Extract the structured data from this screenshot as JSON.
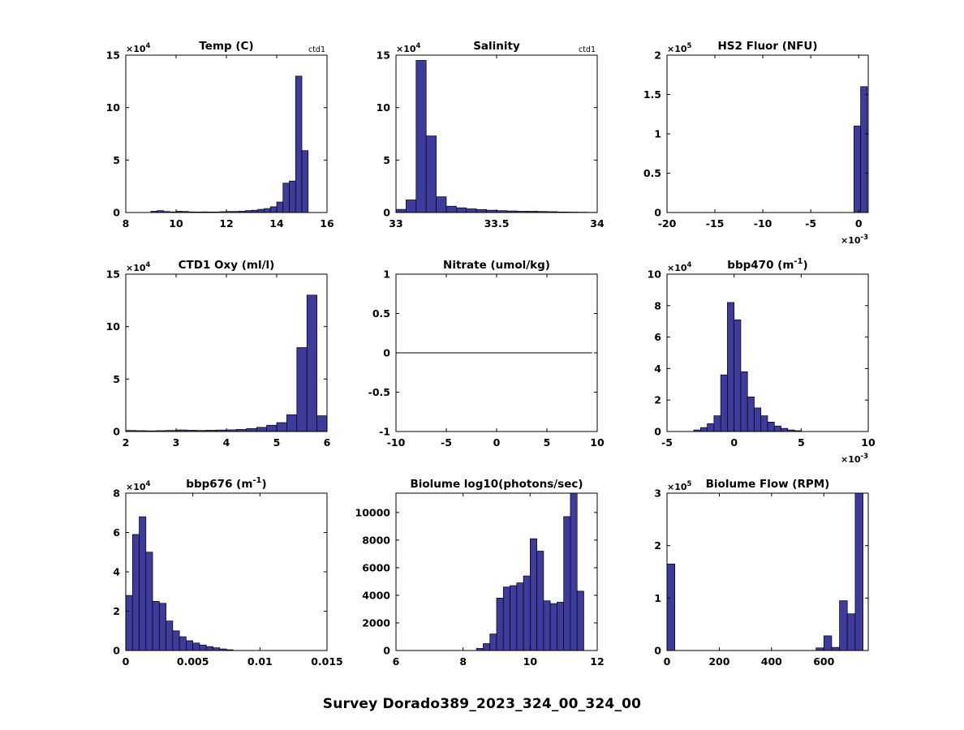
{
  "figure": {
    "title": "Survey Dorado389_2023_324_00_324_00",
    "background": "#ffffff",
    "bar_fill": "#3d3c9c",
    "bar_edge": "#000000",
    "axes_color": "#000000"
  },
  "chart_data": [
    {
      "type": "bar",
      "title": [
        {
          "t": "Temp (C)"
        }
      ],
      "annotation": "ctd1",
      "xlabel": "",
      "ylabel": "",
      "xlim": [
        8,
        16
      ],
      "ylim": [
        0,
        15
      ],
      "xticks": [
        8,
        10,
        12,
        14,
        16
      ],
      "xtick_labels": [
        "8",
        "10",
        "12",
        "14",
        "16"
      ],
      "yticks": [
        0,
        5,
        10,
        15
      ],
      "ytick_labels": [
        "0",
        "5",
        "10",
        "15"
      ],
      "y_exp": "4",
      "bin_width": 0.25,
      "bin_x": [
        9.0,
        9.25,
        9.5,
        9.75,
        10.0,
        10.25,
        10.5,
        10.75,
        11.0,
        11.25,
        11.5,
        11.75,
        12.0,
        12.25,
        12.5,
        12.75,
        13.0,
        13.25,
        13.5,
        13.75,
        14.0,
        14.25,
        14.5,
        14.75,
        15.0
      ],
      "values": [
        0.12,
        0.18,
        0.1,
        0.06,
        0.12,
        0.1,
        0.06,
        0.05,
        0.06,
        0.05,
        0.05,
        0.08,
        0.1,
        0.1,
        0.12,
        0.18,
        0.22,
        0.3,
        0.38,
        0.55,
        1.0,
        2.8,
        3.0,
        13.0,
        5.9
      ]
    },
    {
      "type": "bar",
      "title": [
        {
          "t": "Salinity"
        }
      ],
      "annotation": "ctd1",
      "xlim": [
        33,
        34
      ],
      "ylim": [
        0,
        15
      ],
      "xticks": [
        33,
        33.5,
        34
      ],
      "xtick_labels": [
        "33",
        "33.5",
        "34"
      ],
      "yticks": [
        0,
        5,
        10,
        15
      ],
      "ytick_labels": [
        "0",
        "5",
        "10",
        "15"
      ],
      "y_exp": "4",
      "bin_width": 0.05,
      "bin_x": [
        33.0,
        33.05,
        33.1,
        33.15,
        33.2,
        33.25,
        33.3,
        33.35,
        33.4,
        33.45,
        33.5,
        33.55,
        33.6,
        33.65,
        33.7,
        33.75,
        33.8,
        33.85,
        33.9,
        33.95
      ],
      "values": [
        0.3,
        1.2,
        14.5,
        7.3,
        1.5,
        0.6,
        0.45,
        0.35,
        0.28,
        0.22,
        0.18,
        0.15,
        0.12,
        0.12,
        0.1,
        0.08,
        0.05,
        0.04,
        0.03,
        0.02
      ]
    },
    {
      "type": "bar",
      "title": [
        {
          "t": "HS2 Fluor (NFU)"
        }
      ],
      "xlim": [
        -20,
        1.0
      ],
      "ylim": [
        0,
        2
      ],
      "xticks": [
        -20,
        -15,
        -10,
        -5,
        0
      ],
      "xtick_labels": [
        "-20",
        "-15",
        "-10",
        "-5",
        "0"
      ],
      "yticks": [
        0,
        0.5,
        1,
        1.5,
        2
      ],
      "ytick_labels": [
        "0",
        "0.5",
        "1",
        "1.5",
        "2"
      ],
      "y_exp": "5",
      "x_exp": "-3",
      "bin_width": 0.7,
      "bin_x": [
        -0.5,
        0.2
      ],
      "values": [
        1.1,
        1.6
      ]
    },
    {
      "type": "bar",
      "title": [
        {
          "t": "CTD1 Oxy (ml/l)"
        }
      ],
      "xlim": [
        2,
        6
      ],
      "ylim": [
        0,
        15
      ],
      "xticks": [
        2,
        3,
        4,
        5,
        6
      ],
      "xtick_labels": [
        "2",
        "3",
        "4",
        "5",
        "6"
      ],
      "yticks": [
        0,
        5,
        10,
        15
      ],
      "ytick_labels": [
        "0",
        "5",
        "10",
        "15"
      ],
      "y_exp": "4",
      "bin_width": 0.2,
      "bin_x": [
        2.0,
        2.2,
        2.4,
        2.6,
        2.8,
        3.0,
        3.2,
        3.4,
        3.6,
        3.8,
        4.0,
        4.2,
        4.4,
        4.6,
        4.8,
        5.0,
        5.2,
        5.4,
        5.6,
        5.8
      ],
      "values": [
        0.1,
        0.08,
        0.06,
        0.08,
        0.1,
        0.15,
        0.12,
        0.1,
        0.12,
        0.14,
        0.16,
        0.2,
        0.28,
        0.4,
        0.6,
        0.85,
        1.6,
        8.0,
        13.0,
        1.5
      ]
    },
    {
      "type": "line",
      "title": [
        {
          "t": "Nitrate (umol/kg)"
        }
      ],
      "xlim": [
        -10,
        10
      ],
      "ylim": [
        -1,
        1
      ],
      "xticks": [
        -10,
        -5,
        0,
        5,
        10
      ],
      "xtick_labels": [
        "-10",
        "-5",
        "0",
        "5",
        "10"
      ],
      "yticks": [
        -1,
        -0.5,
        0,
        0.5,
        1
      ],
      "ytick_labels": [
        "-1",
        "-0.5",
        "0",
        "0.5",
        "1"
      ],
      "line": {
        "x": [
          -10,
          9.5
        ],
        "y": [
          0,
          0
        ]
      }
    },
    {
      "type": "bar",
      "title": [
        {
          "t": "bbp470 (m"
        },
        {
          "t": "-1",
          "sup": true
        },
        {
          "t": ")"
        }
      ],
      "xlim": [
        -5,
        10
      ],
      "ylim": [
        0,
        10
      ],
      "xticks": [
        -5,
        0,
        5,
        10
      ],
      "xtick_labels": [
        "-5",
        "0",
        "5",
        "10"
      ],
      "yticks": [
        0,
        2,
        4,
        6,
        8,
        10
      ],
      "ytick_labels": [
        "0",
        "2",
        "4",
        "6",
        "8",
        "10"
      ],
      "y_exp": "4",
      "x_exp": "-3",
      "bin_width": 0.5,
      "bin_x": [
        -3.0,
        -2.5,
        -2.0,
        -1.5,
        -1.0,
        -0.5,
        0,
        0.5,
        1.0,
        1.5,
        2.0,
        2.5,
        3.0,
        3.5,
        4.0,
        4.5
      ],
      "values": [
        0.1,
        0.25,
        0.5,
        1.0,
        3.6,
        8.2,
        7.1,
        3.8,
        2.2,
        1.5,
        1.0,
        0.6,
        0.35,
        0.2,
        0.1,
        0.05
      ]
    },
    {
      "type": "bar",
      "title": [
        {
          "t": "bbp676 (m"
        },
        {
          "t": "-1",
          "sup": true
        },
        {
          "t": ")"
        }
      ],
      "xlim": [
        0,
        0.015
      ],
      "ylim": [
        0,
        8
      ],
      "xticks": [
        0,
        0.005,
        0.01,
        0.015
      ],
      "xtick_labels": [
        "0",
        "0.005",
        "0.01",
        "0.015"
      ],
      "yticks": [
        0,
        2,
        4,
        6,
        8
      ],
      "ytick_labels": [
        "0",
        "2",
        "4",
        "6",
        "8"
      ],
      "y_exp": "4",
      "bin_width": 0.0005,
      "bin_x": [
        0,
        0.0005,
        0.001,
        0.0015,
        0.002,
        0.0025,
        0.003,
        0.0035,
        0.004,
        0.0045,
        0.005,
        0.0055,
        0.006,
        0.0065,
        0.007,
        0.0075
      ],
      "values": [
        2.8,
        5.9,
        6.8,
        5.0,
        2.5,
        2.4,
        1.5,
        1.0,
        0.7,
        0.5,
        0.38,
        0.28,
        0.2,
        0.14,
        0.08,
        0.04
      ]
    },
    {
      "type": "bar",
      "title": [
        {
          "t": "Biolume log10(photons/sec)"
        }
      ],
      "xlim": [
        6,
        12
      ],
      "ylim": [
        0,
        11400
      ],
      "xticks": [
        6,
        8,
        10,
        12
      ],
      "xtick_labels": [
        "6",
        "8",
        "10",
        "12"
      ],
      "yticks": [
        0,
        2000,
        4000,
        6000,
        8000,
        10000
      ],
      "ytick_labels": [
        "0",
        "2000",
        "4000",
        "6000",
        "8000",
        "10000"
      ],
      "bin_width": 0.2,
      "bin_x": [
        8.4,
        8.6,
        8.8,
        9.0,
        9.2,
        9.4,
        9.6,
        9.8,
        10.0,
        10.2,
        10.4,
        10.6,
        10.8,
        11.0,
        11.2,
        11.4
      ],
      "values": [
        150,
        500,
        1200,
        3800,
        4600,
        4700,
        4900,
        5400,
        8100,
        7200,
        3600,
        3400,
        3500,
        9700,
        11400,
        4300
      ]
    },
    {
      "type": "bar",
      "title": [
        {
          "t": "Biolume Flow (RPM)"
        }
      ],
      "xlim": [
        0,
        770
      ],
      "ylim": [
        0,
        3
      ],
      "xticks": [
        0,
        200,
        400,
        600
      ],
      "xtick_labels": [
        "0",
        "200",
        "400",
        "600"
      ],
      "yticks": [
        0,
        1,
        2,
        3
      ],
      "ytick_labels": [
        "0",
        "1",
        "2",
        "3"
      ],
      "y_exp": "5",
      "bin_width": 30,
      "bin_x": [
        0,
        570,
        600,
        630,
        660,
        690,
        720
      ],
      "values": [
        1.65,
        0.05,
        0.28,
        0.06,
        0.95,
        0.7,
        3.0
      ]
    }
  ]
}
